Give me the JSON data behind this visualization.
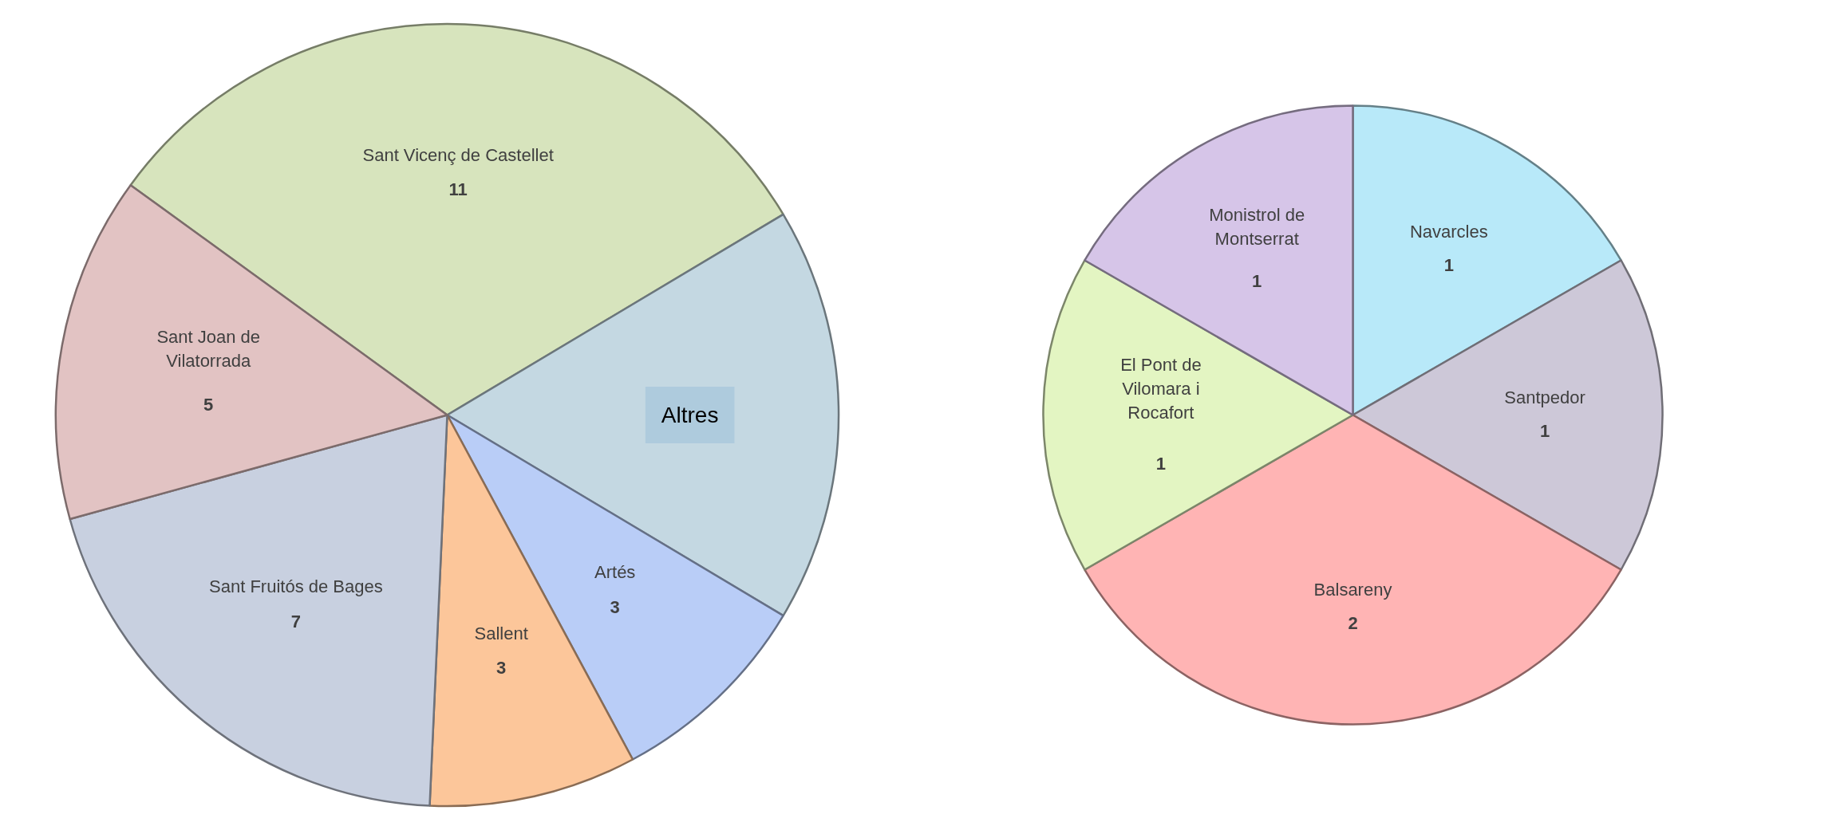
{
  "chart_data": [
    {
      "type": "pie",
      "categories": [
        "Sant Vicenç de Castellet",
        "Altres",
        "Artés",
        "Sallent",
        "Sant Fruitós de Bages",
        "Sant Joan de Vilatorrada"
      ],
      "values": [
        11,
        6,
        3,
        3,
        7,
        5
      ],
      "colors": [
        "#d7e4bd",
        "#c4d8e2",
        "#b9cdf7",
        "#fcc69a",
        "#c8d0e0",
        "#e2c3c3"
      ],
      "value_labels": [
        "11",
        null,
        "3",
        "3",
        "7",
        "5"
      ]
    },
    {
      "type": "pie",
      "categories": [
        "Navarcles",
        "Santpedor",
        "Balsareny",
        "El Pont de Vilomara i Rocafort",
        "Monistrol de Montserrat"
      ],
      "values": [
        1,
        1,
        2,
        1,
        1
      ],
      "colors": [
        "#b8e9f9",
        "#cdc8d8",
        "#ffb4b4",
        "#e3f5c2",
        "#d6c5e8"
      ],
      "data_labels": true
    }
  ]
}
